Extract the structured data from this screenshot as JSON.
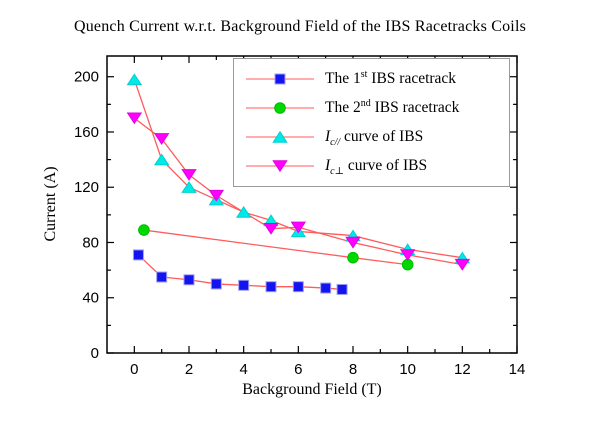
{
  "chart_data": {
    "type": "line",
    "title": "Quench Current w.r.t. Background Field of the IBS Racetracks Coils",
    "xlabel": "Background Field (T)",
    "ylabel": "Current (A)",
    "xlim": [
      -1,
      14
    ],
    "ylim": [
      0,
      215
    ],
    "xticks": [
      0,
      2,
      4,
      6,
      8,
      10,
      12,
      14
    ],
    "xminorticks": [
      1,
      3,
      5,
      7,
      9,
      11,
      13
    ],
    "yticks": [
      0,
      40,
      80,
      120,
      160,
      200
    ],
    "yminorticks": [
      20,
      60,
      100,
      140,
      180
    ],
    "grid": false,
    "legend_position": "inside upper center",
    "line_color": "#ff5c5c",
    "frame_color": "#000000",
    "series": [
      {
        "name": "The 1st IBS racetrack",
        "marker": "square",
        "marker_color": "#1414f0",
        "marker_edge": "#9d9df2",
        "x": [
          0.15,
          1,
          2,
          3,
          4,
          5,
          6,
          7,
          7.6
        ],
        "y": [
          71,
          55,
          53,
          50,
          49,
          48,
          48,
          47,
          46
        ]
      },
      {
        "name": "The 2nd IBS racetrack",
        "marker": "circle",
        "marker_color": "#00d900",
        "marker_edge": "#00bb00",
        "x": [
          0.35,
          8,
          10
        ],
        "y": [
          89,
          69,
          64
        ]
      },
      {
        "name": "Ic// curve of IBS",
        "marker": "triangle-up",
        "marker_color": "#00e9e9",
        "marker_edge": "#00cfcf",
        "x": [
          0,
          1,
          2,
          3,
          4,
          5,
          6,
          8,
          10,
          12
        ],
        "y": [
          198,
          140,
          120,
          111,
          102,
          96,
          88,
          85,
          75,
          69
        ]
      },
      {
        "name": "Ic⊥ curve of IBS",
        "marker": "triangle-down",
        "marker_color": "#ff00ff",
        "marker_edge": "#e200e2",
        "x": [
          0,
          1,
          2,
          3,
          5,
          6,
          8,
          10,
          12
        ],
        "y": [
          170,
          155,
          129,
          114,
          90,
          91,
          80,
          71,
          64
        ]
      }
    ]
  },
  "legend": {
    "sample_line_color": "#ff9090",
    "items": [
      {
        "pre": "The 1",
        "sup": "st",
        "post": " IBS racetrack"
      },
      {
        "pre": "The 2",
        "sup": "nd",
        "post": " IBS racetrack"
      },
      {
        "base": "I",
        "sub": "c//",
        "post": " curve of IBS"
      },
      {
        "base": "I",
        "sub": "c⊥",
        "post": " curve of IBS"
      }
    ]
  }
}
